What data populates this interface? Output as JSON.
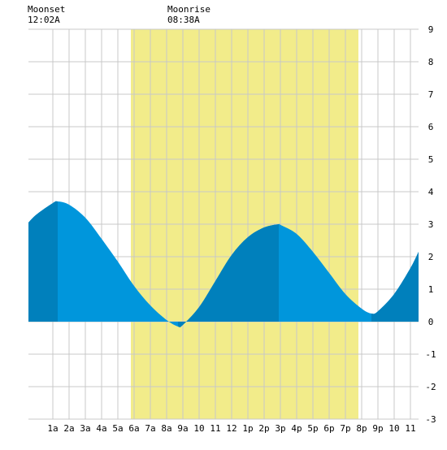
{
  "moon": {
    "moonset_label": "Moonset",
    "moonset_time": "12:02A",
    "moonrise_label": "Moonrise",
    "moonrise_time": "08:38A"
  },
  "colors": {
    "daylight": "#f2ec8a",
    "tide_light": "#0096dc",
    "tide_dark": "#0080bc",
    "grid": "#c8c8c8",
    "background": "#ffffff",
    "axis_text": "#000000"
  },
  "chart_data": {
    "type": "area",
    "x_unit": "hours from midnight",
    "xlim": [
      -0.5,
      23.5
    ],
    "ylim": [
      -3,
      9
    ],
    "y_ticks": [
      -3,
      -2,
      -1,
      0,
      1,
      2,
      3,
      4,
      5,
      6,
      7,
      8,
      9
    ],
    "x_ticks": [
      {
        "hour": 1,
        "label": "1a"
      },
      {
        "hour": 2,
        "label": "2a"
      },
      {
        "hour": 3,
        "label": "3a"
      },
      {
        "hour": 4,
        "label": "4a"
      },
      {
        "hour": 5,
        "label": "5a"
      },
      {
        "hour": 6,
        "label": "6a"
      },
      {
        "hour": 7,
        "label": "7a"
      },
      {
        "hour": 8,
        "label": "8a"
      },
      {
        "hour": 9,
        "label": "9a"
      },
      {
        "hour": 10,
        "label": "10"
      },
      {
        "hour": 11,
        "label": "11"
      },
      {
        "hour": 12,
        "label": "12"
      },
      {
        "hour": 13,
        "label": "1p"
      },
      {
        "hour": 14,
        "label": "2p"
      },
      {
        "hour": 15,
        "label": "3p"
      },
      {
        "hour": 16,
        "label": "4p"
      },
      {
        "hour": 17,
        "label": "5p"
      },
      {
        "hour": 18,
        "label": "6p"
      },
      {
        "hour": 19,
        "label": "7p"
      },
      {
        "hour": 20,
        "label": "8p"
      },
      {
        "hour": 21,
        "label": "9p"
      },
      {
        "hour": 22,
        "label": "10"
      },
      {
        "hour": 23,
        "label": "11"
      }
    ],
    "daylight": {
      "start": 5.8,
      "end": 19.8
    },
    "tide_extremes": [
      {
        "type": "high",
        "time": 1.3,
        "height": 3.7
      },
      {
        "type": "low",
        "time": 8.7,
        "height": -0.15
      },
      {
        "type": "high",
        "time": 14.9,
        "height": 3.0
      },
      {
        "type": "low",
        "time": 20.6,
        "height": 0.25
      }
    ],
    "tide_series": {
      "x": [
        -0.5,
        0,
        1,
        1.3,
        2,
        3,
        4,
        5,
        6,
        7,
        8,
        8.7,
        9,
        10,
        11,
        12,
        13,
        14,
        14.9,
        15,
        16,
        17,
        18,
        19,
        20,
        20.6,
        21,
        22,
        23,
        23.5
      ],
      "y": [
        3.05,
        3.3,
        3.65,
        3.7,
        3.6,
        3.2,
        2.55,
        1.85,
        1.1,
        0.5,
        0.05,
        -0.15,
        -0.1,
        0.45,
        1.25,
        2.05,
        2.6,
        2.9,
        3.0,
        2.98,
        2.7,
        2.15,
        1.5,
        0.85,
        0.4,
        0.25,
        0.32,
        0.85,
        1.65,
        2.15
      ]
    },
    "dark_bands": [
      {
        "start": -0.5,
        "end": 1.3
      },
      {
        "start": 8.7,
        "end": 14.9
      },
      {
        "start": 20.6,
        "end": 23.5
      }
    ]
  }
}
